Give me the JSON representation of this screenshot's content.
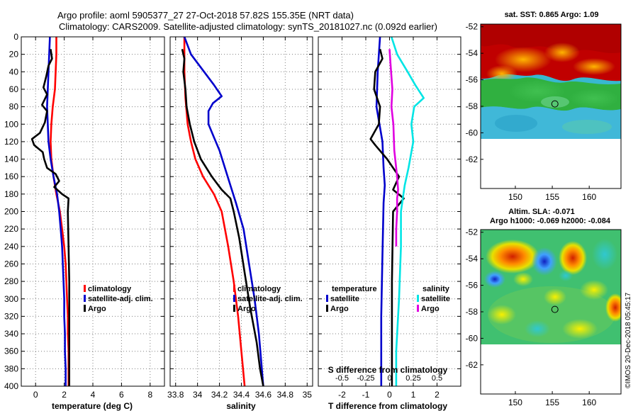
{
  "title": {
    "line1": "Argo profile: aoml 5905377_27 27-Oct-2018 57.82S 155.35E (NRT data)",
    "line2": "Climatology: CARS2009. Satellite-adjusted climatology: synTS_20181027.nc (0.092d earlier)"
  },
  "watermark": "©IMOS 20-Dec-2018 05:45:17",
  "depth_ticks": [
    "0",
    "20",
    "40",
    "60",
    "80",
    "100",
    "120",
    "140",
    "160",
    "180",
    "200",
    "220",
    "240",
    "260",
    "280",
    "300",
    "320",
    "340",
    "360",
    "380",
    "400"
  ],
  "chart_data": [
    {
      "id": "temperature",
      "type": "line",
      "xlabel": "temperature (deg C)",
      "ylabel": "",
      "xlim": [
        -1,
        9
      ],
      "ylim": [
        400,
        0
      ],
      "x_ticks": [
        0,
        2,
        4,
        6,
        8
      ],
      "x_tick_labels": [
        "0",
        "2",
        "4",
        "6",
        "8"
      ],
      "legend": [
        "climatology",
        "satellite-adj. clim.",
        "Argo"
      ],
      "series": [
        {
          "name": "climatology",
          "color": "#ff0000",
          "points": [
            [
              1.45,
              0
            ],
            [
              1.45,
              20
            ],
            [
              1.4,
              40
            ],
            [
              1.35,
              60
            ],
            [
              1.2,
              80
            ],
            [
              1.1,
              100
            ],
            [
              1.05,
              120
            ],
            [
              1.1,
              140
            ],
            [
              1.25,
              160
            ],
            [
              1.45,
              180
            ],
            [
              1.7,
              200
            ],
            [
              1.85,
              220
            ],
            [
              2.0,
              240
            ],
            [
              2.1,
              260
            ],
            [
              2.15,
              280
            ],
            [
              2.2,
              300
            ],
            [
              2.25,
              320
            ],
            [
              2.25,
              340
            ],
            [
              2.3,
              360
            ],
            [
              2.3,
              380
            ],
            [
              2.3,
              400
            ]
          ]
        },
        {
          "name": "satellite-adj. clim.",
          "color": "#0000cc",
          "points": [
            [
              1.0,
              0
            ],
            [
              0.95,
              20
            ],
            [
              0.9,
              40
            ],
            [
              0.85,
              60
            ],
            [
              0.8,
              80
            ],
            [
              0.85,
              100
            ],
            [
              0.9,
              120
            ],
            [
              1.05,
              140
            ],
            [
              1.25,
              160
            ],
            [
              1.5,
              180
            ],
            [
              1.65,
              200
            ],
            [
              1.75,
              220
            ],
            [
              1.85,
              240
            ],
            [
              1.9,
              260
            ],
            [
              1.95,
              280
            ],
            [
              2.0,
              300
            ],
            [
              2.0,
              320
            ],
            [
              2.05,
              340
            ],
            [
              2.05,
              360
            ],
            [
              2.1,
              380
            ],
            [
              2.1,
              400
            ]
          ]
        },
        {
          "name": "Argo",
          "color": "#000000",
          "points": [
            [
              1.05,
              14
            ],
            [
              1.15,
              25
            ],
            [
              0.9,
              33
            ],
            [
              0.75,
              45
            ],
            [
              0.55,
              58
            ],
            [
              0.8,
              66
            ],
            [
              0.45,
              78
            ],
            [
              0.8,
              85
            ],
            [
              0.65,
              98
            ],
            [
              0.3,
              110
            ],
            [
              -0.25,
              117
            ],
            [
              -0.1,
              124
            ],
            [
              0.5,
              132
            ],
            [
              0.6,
              140
            ],
            [
              0.8,
              150
            ],
            [
              1.4,
              157
            ],
            [
              1.65,
              165
            ],
            [
              1.3,
              172
            ],
            [
              1.85,
              180
            ],
            [
              2.3,
              185
            ],
            [
              2.25,
              200
            ],
            [
              2.3,
              240
            ],
            [
              2.35,
              280
            ],
            [
              2.35,
              320
            ],
            [
              2.35,
              360
            ],
            [
              2.35,
              400
            ]
          ]
        }
      ]
    },
    {
      "id": "salinity",
      "type": "line",
      "xlabel": "salinity",
      "ylabel": "",
      "xlim": [
        33.75,
        35.05
      ],
      "ylim": [
        400,
        0
      ],
      "x_ticks": [
        33.8,
        34,
        34.2,
        34.4,
        34.6,
        34.8,
        35
      ],
      "x_tick_labels": [
        "33.8",
        "34",
        "34.2",
        "34.4",
        "34.6",
        "34.8",
        "35"
      ],
      "legend": [
        "climatology",
        "satellite-adj. clim.",
        "Argo"
      ],
      "series": [
        {
          "name": "climatology",
          "color": "#ff0000",
          "points": [
            [
              33.88,
              0
            ],
            [
              33.88,
              40
            ],
            [
              33.89,
              70
            ],
            [
              33.91,
              100
            ],
            [
              33.94,
              120
            ],
            [
              33.98,
              140
            ],
            [
              34.05,
              160
            ],
            [
              34.15,
              180
            ],
            [
              34.22,
              200
            ],
            [
              34.28,
              240
            ],
            [
              34.33,
              280
            ],
            [
              34.37,
              320
            ],
            [
              34.4,
              360
            ],
            [
              34.43,
              400
            ]
          ]
        },
        {
          "name": "satellite-adj. clim.",
          "color": "#0000cc",
          "points": [
            [
              33.88,
              0
            ],
            [
              33.94,
              20
            ],
            [
              34.06,
              40
            ],
            [
              34.15,
              55
            ],
            [
              34.22,
              68
            ],
            [
              34.14,
              76
            ],
            [
              34.1,
              85
            ],
            [
              34.1,
              100
            ],
            [
              34.15,
              115
            ],
            [
              34.2,
              130
            ],
            [
              34.25,
              150
            ],
            [
              34.3,
              170
            ],
            [
              34.35,
              190
            ],
            [
              34.42,
              220
            ],
            [
              34.47,
              260
            ],
            [
              34.52,
              300
            ],
            [
              34.56,
              340
            ],
            [
              34.58,
              370
            ],
            [
              34.6,
              400
            ]
          ]
        },
        {
          "name": "Argo",
          "color": "#000000",
          "points": [
            [
              33.86,
              14
            ],
            [
              33.88,
              25
            ],
            [
              33.87,
              40
            ],
            [
              33.89,
              60
            ],
            [
              33.9,
              80
            ],
            [
              33.93,
              100
            ],
            [
              33.97,
              120
            ],
            [
              34.03,
              140
            ],
            [
              34.13,
              160
            ],
            [
              34.22,
              175
            ],
            [
              34.3,
              185
            ],
            [
              34.33,
              200
            ],
            [
              34.38,
              230
            ],
            [
              34.43,
              270
            ],
            [
              34.48,
              310
            ],
            [
              34.54,
              350
            ],
            [
              34.57,
              380
            ],
            [
              34.6,
              400
            ]
          ]
        }
      ]
    },
    {
      "id": "differences",
      "type": "line",
      "xlabel": "T difference from climatology",
      "top_xlabel": "S difference from climatology",
      "xlim": [
        -3,
        3
      ],
      "ylim": [
        400,
        0
      ],
      "x_ticks": [
        -2,
        -1,
        0,
        1,
        2
      ],
      "x_tick_labels": [
        "-2",
        "-1",
        "0",
        "1",
        "2"
      ],
      "s_xlim": [
        -0.75,
        0.75
      ],
      "s_ticks": [
        -0.5,
        -0.25,
        0,
        0.25,
        0.5
      ],
      "s_tick_labels": [
        "-0.5",
        "-0.25",
        "0",
        "0.25",
        "0.5"
      ],
      "legend_temperature": {
        "heading": "temperature",
        "items": [
          "satellite",
          "Argo"
        ]
      },
      "legend_salinity": {
        "heading": "salinity",
        "items": [
          "satellite",
          "Argo"
        ]
      },
      "series": [
        {
          "name": "T satellite",
          "color": "#0000cc",
          "points": [
            [
              -0.4,
              0
            ],
            [
              -0.5,
              40
            ],
            [
              -0.55,
              80
            ],
            [
              -0.3,
              120
            ],
            [
              -0.25,
              150
            ],
            [
              -0.2,
              170
            ],
            [
              -0.25,
              190
            ],
            [
              -0.3,
              250
            ],
            [
              -0.35,
              320
            ],
            [
              -0.35,
              400
            ]
          ]
        },
        {
          "name": "T Argo",
          "color": "#000000",
          "points": [
            [
              -0.4,
              14
            ],
            [
              -0.3,
              25
            ],
            [
              -0.6,
              40
            ],
            [
              -0.65,
              60
            ],
            [
              -0.4,
              80
            ],
            [
              -0.45,
              100
            ],
            [
              -0.8,
              117
            ],
            [
              -0.6,
              124
            ],
            [
              -0.1,
              140
            ],
            [
              0.4,
              160
            ],
            [
              0.15,
              175
            ],
            [
              0.6,
              185
            ],
            [
              0.15,
              200
            ],
            [
              0.1,
              280
            ],
            [
              0.1,
              400
            ]
          ]
        },
        {
          "name": "S satellite",
          "color": "#00e5e5",
          "points": [
            [
              0.02,
              0
            ],
            [
              0.08,
              20
            ],
            [
              0.19,
              40
            ],
            [
              0.27,
              55
            ],
            [
              0.36,
              70
            ],
            [
              0.26,
              80
            ],
            [
              0.23,
              100
            ],
            [
              0.25,
              120
            ],
            [
              0.2,
              150
            ],
            [
              0.16,
              170
            ],
            [
              0.12,
              200
            ],
            [
              0.12,
              240
            ],
            [
              0.1,
              300
            ],
            [
              0.07,
              360
            ],
            [
              0.07,
              400
            ]
          ]
        },
        {
          "name": "S Argo",
          "color": "#e000e0",
          "points": [
            [
              0.0,
              14
            ],
            [
              0.01,
              30
            ],
            [
              0.03,
              60
            ],
            [
              0.02,
              80
            ],
            [
              0.04,
              100
            ],
            [
              0.05,
              130
            ],
            [
              0.08,
              160
            ],
            [
              0.09,
              175
            ],
            [
              0.08,
              185
            ],
            [
              0.08,
              200
            ],
            [
              0.07,
              220
            ],
            [
              0.07,
              240
            ]
          ]
        }
      ]
    }
  ],
  "maps": {
    "sst": {
      "title": "sat. SST: 0.865 Argo: 1.09",
      "x_ticks": [
        "150",
        "155",
        "160"
      ],
      "y_ticks": [
        "-52",
        "-54",
        "-56",
        "-58",
        "-60",
        "-62"
      ],
      "marker_lon": 155.35,
      "marker_lat": -57.82
    },
    "sla": {
      "title1": "Altim. SLA: -0.071",
      "title2": "Argo h1000: -0.069 h2000: -0.084",
      "x_ticks": [
        "150",
        "155",
        "160"
      ],
      "y_ticks": [
        "-52",
        "-54",
        "-56",
        "-58",
        "-60",
        "-62"
      ],
      "marker_lon": 155.35,
      "marker_lat": -57.82
    }
  },
  "colors": {
    "grid": "#808080",
    "frame": "#000000"
  }
}
